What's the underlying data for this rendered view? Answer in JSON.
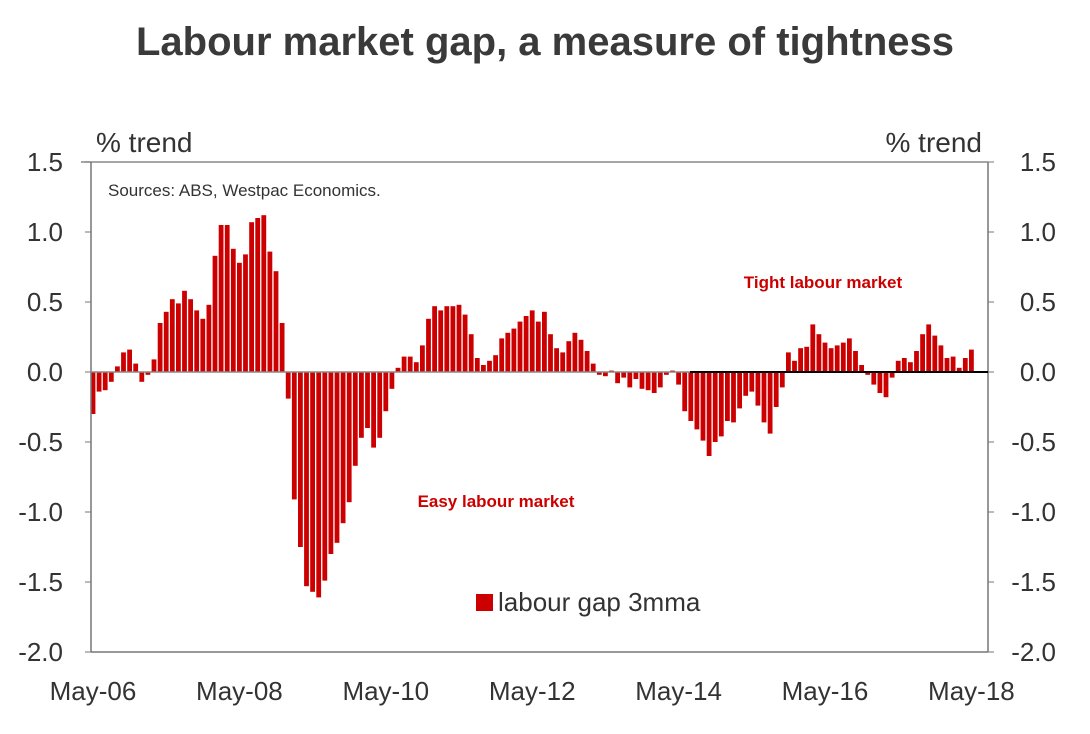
{
  "title": "Labour market gap, a measure of tightness",
  "chart_data": {
    "type": "bar",
    "title": "Labour market gap, a measure of tightness",
    "ylabel_left": "% trend",
    "ylabel_right": "% trend",
    "source": "Sources: ABS, Westpac Economics.",
    "ylim": [
      -2.0,
      1.5
    ],
    "yticks": [
      "1.5",
      "1.0",
      "0.5",
      "0.0",
      "-0.5",
      "-1.0",
      "-1.5",
      "-2.0"
    ],
    "ytick_values": [
      1.5,
      1.0,
      0.5,
      0.0,
      -0.5,
      -1.0,
      -1.5,
      -2.0
    ],
    "xtick_labels": [
      "May-06",
      "May-08",
      "May-10",
      "May-12",
      "May-14",
      "May-16",
      "May-18"
    ],
    "x_start": "May-06",
    "x_end": "May-18",
    "frequency": "monthly",
    "legend": {
      "label": "labour gap 3mma",
      "position": "bottom-center"
    },
    "annotations": [
      "Tight labour market",
      "Easy labour market"
    ],
    "color": "#cc0000",
    "series": [
      {
        "name": "labour gap 3mma",
        "values": [
          -0.3,
          -0.14,
          -0.13,
          -0.07,
          0.04,
          0.14,
          0.16,
          0.06,
          -0.07,
          -0.02,
          0.09,
          0.35,
          0.43,
          0.52,
          0.49,
          0.58,
          0.52,
          0.44,
          0.38,
          0.48,
          0.83,
          1.05,
          1.05,
          0.88,
          0.78,
          0.84,
          1.07,
          1.1,
          1.12,
          0.86,
          0.72,
          0.35,
          -0.19,
          -0.91,
          -1.25,
          -1.53,
          -1.57,
          -1.61,
          -1.49,
          -1.3,
          -1.22,
          -1.08,
          -0.93,
          -0.67,
          -0.47,
          -0.4,
          -0.54,
          -0.47,
          -0.28,
          -0.12,
          0.03,
          0.11,
          0.11,
          0.07,
          0.19,
          0.38,
          0.47,
          0.44,
          0.47,
          0.47,
          0.48,
          0.41,
          0.27,
          0.1,
          0.05,
          0.08,
          0.12,
          0.24,
          0.28,
          0.31,
          0.36,
          0.4,
          0.44,
          0.36,
          0.43,
          0.27,
          0.17,
          0.14,
          0.22,
          0.28,
          0.23,
          0.15,
          0.06,
          -0.02,
          -0.03,
          0.01,
          -0.08,
          -0.04,
          -0.11,
          -0.05,
          -0.12,
          -0.13,
          -0.15,
          -0.11,
          -0.02,
          0.01,
          -0.09,
          -0.28,
          -0.35,
          -0.41,
          -0.49,
          -0.6,
          -0.5,
          -0.46,
          -0.35,
          -0.36,
          -0.26,
          -0.17,
          -0.14,
          -0.24,
          -0.36,
          -0.44,
          -0.25,
          -0.11,
          0.14,
          0.08,
          0.17,
          0.18,
          0.34,
          0.27,
          0.21,
          0.17,
          0.19,
          0.21,
          0.24,
          0.15,
          0.05,
          -0.02,
          -0.09,
          -0.15,
          -0.18,
          -0.04,
          0.08,
          0.1,
          0.07,
          0.15,
          0.27,
          0.34,
          0.26,
          0.19,
          0.1,
          0.11,
          0.03,
          0.1,
          0.16
        ]
      }
    ]
  }
}
